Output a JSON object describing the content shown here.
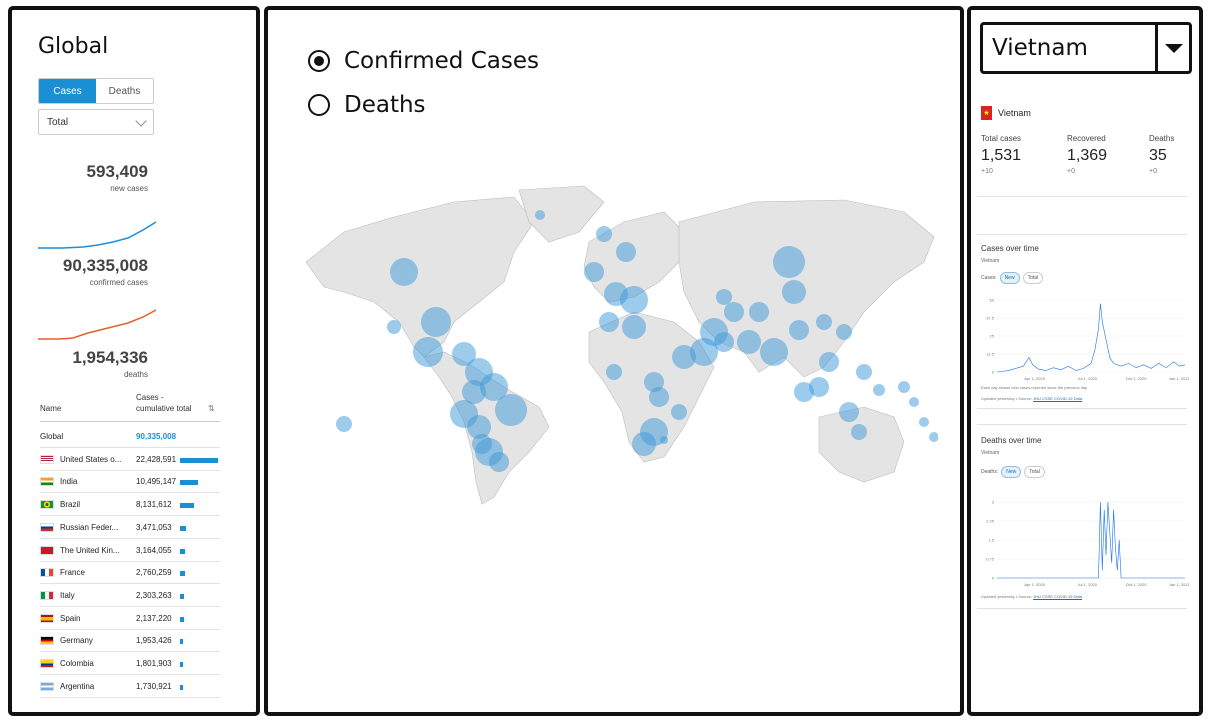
{
  "left": {
    "title": "Global",
    "tabs": [
      {
        "label": "Cases",
        "active": true
      },
      {
        "label": "Deaths",
        "active": false
      }
    ],
    "select": {
      "value": "Total"
    },
    "stats": [
      {
        "value": "593,409",
        "label": "new cases"
      },
      {
        "value": "90,335,008",
        "label": "confirmed cases"
      },
      {
        "value": "1,954,336",
        "label": "deaths"
      }
    ],
    "table": {
      "col_name": "Name",
      "col_cases": "Cases - cumulative total",
      "rows": [
        {
          "name": "Global",
          "value": "90,335,008",
          "bar_pct": 0
        },
        {
          "name": "United States o...",
          "value": "22,428,591",
          "bar_pct": 1.0,
          "flag": "us"
        },
        {
          "name": "India",
          "value": "10,495,147",
          "bar_pct": 0.47,
          "flag": "in"
        },
        {
          "name": "Brazil",
          "value": "8,131,612",
          "bar_pct": 0.36,
          "flag": "br"
        },
        {
          "name": "Russian Feder...",
          "value": "3,471,053",
          "bar_pct": 0.15,
          "flag": "ru"
        },
        {
          "name": "The United Kin...",
          "value": "3,164,055",
          "bar_pct": 0.14,
          "flag": "gb"
        },
        {
          "name": "France",
          "value": "2,760,259",
          "bar_pct": 0.12,
          "flag": "fr"
        },
        {
          "name": "Italy",
          "value": "2,303,263",
          "bar_pct": 0.1,
          "flag": "it"
        },
        {
          "name": "Spain",
          "value": "2,137,220",
          "bar_pct": 0.095,
          "flag": "es"
        },
        {
          "name": "Germany",
          "value": "1,953,426",
          "bar_pct": 0.087,
          "flag": "de"
        },
        {
          "name": "Colombia",
          "value": "1,801,903",
          "bar_pct": 0.08,
          "flag": "co"
        },
        {
          "name": "Argentina",
          "value": "1,730,921",
          "bar_pct": 0.077,
          "flag": "ar"
        }
      ]
    },
    "colors": {
      "accent": "#1a8fd4",
      "deaths_line": "#e0622a"
    }
  },
  "center": {
    "radios": [
      {
        "label": "Confirmed Cases",
        "checked": true
      },
      {
        "label": "Deaths",
        "checked": false
      }
    ],
    "map_bubble_color": "#3b97d9"
  },
  "right": {
    "dropdown": {
      "value": "Vietnam"
    },
    "country": "Vietnam",
    "stats": [
      {
        "label": "Total cases",
        "value": "1,531",
        "delta": "+10"
      },
      {
        "label": "Recovered",
        "value": "1,369",
        "delta": "+0"
      },
      {
        "label": "Deaths",
        "value": "35",
        "delta": "+0"
      }
    ],
    "cases_chart": {
      "title": "Cases over time",
      "subtitle": "Vietnam",
      "toggle_label": "Cases:",
      "toggle_options": [
        "New",
        "Total"
      ],
      "y_ticks": [
        "50",
        "37.5",
        "25",
        "12.5",
        "0"
      ],
      "x_ticks": [
        "Apr 1, 2020",
        "Jul 1, 2020",
        "Oct 1, 2020",
        "Jan 1, 2021"
      ],
      "note": "Each day shows new cases reported since the previous day",
      "source": "Updated yesterday • Source:",
      "source_link": "JHU CSSE COVID-19 Data"
    },
    "deaths_chart": {
      "title": "Deaths over time",
      "subtitle": "Vietnam",
      "toggle_label": "Deaths:",
      "toggle_options": [
        "New",
        "Total"
      ],
      "y_ticks": [
        "3",
        "2.25",
        "1.5",
        "0.75",
        "0"
      ],
      "x_ticks": [
        "Apr 1, 2020",
        "Jul 1, 2020",
        "Oct 1, 2020",
        "Jan 1, 2021"
      ],
      "source": "Updated yesterday • Source:",
      "source_link": "JHU CSSE COVID-19 Data"
    }
  }
}
